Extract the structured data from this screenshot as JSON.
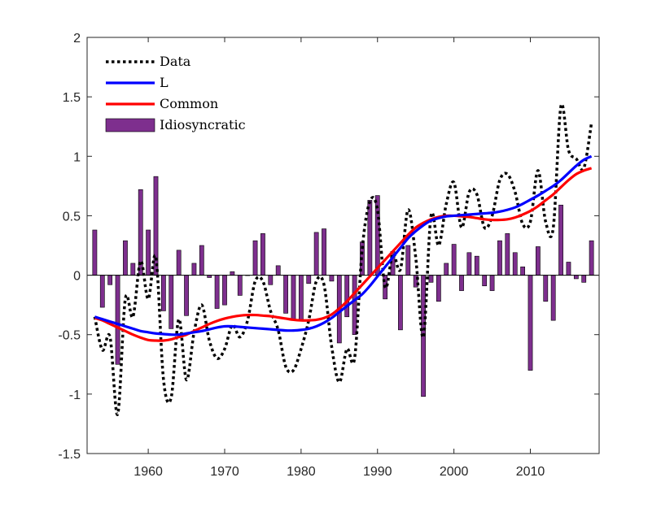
{
  "chart_data": {
    "type": "bar+line",
    "xlim": [
      1952,
      2019
    ],
    "ylim": [
      -1.5,
      2
    ],
    "x_ticks": [
      1960,
      1970,
      1980,
      1990,
      2000,
      2010
    ],
    "y_ticks": [
      -1.5,
      -1,
      -0.5,
      0,
      0.5,
      1,
      1.5,
      2
    ],
    "x_tick_labels": [
      "1960",
      "1970",
      "1980",
      "1990",
      "2000",
      "2010"
    ],
    "y_tick_labels": [
      "-1.5",
      "-1",
      "-0.5",
      "0",
      "0.5",
      "1",
      "1.5",
      "2"
    ],
    "grid": false,
    "legend_placement": "top-left",
    "years": [
      1953,
      1954,
      1955,
      1956,
      1957,
      1958,
      1959,
      1960,
      1961,
      1962,
      1963,
      1964,
      1965,
      1966,
      1967,
      1968,
      1969,
      1970,
      1971,
      1972,
      1973,
      1974,
      1975,
      1976,
      1977,
      1978,
      1979,
      1980,
      1981,
      1982,
      1983,
      1984,
      1985,
      1986,
      1987,
      1988,
      1989,
      1990,
      1991,
      1992,
      1993,
      1994,
      1995,
      1996,
      1997,
      1998,
      1999,
      2000,
      2001,
      2002,
      2003,
      2004,
      2005,
      2006,
      2007,
      2008,
      2009,
      2010,
      2011,
      2012,
      2013,
      2014,
      2015,
      2016,
      2017,
      2018
    ],
    "series": [
      {
        "name": "Data",
        "style": "dotted",
        "color": "#000000",
        "values": [
          -0.35,
          -0.63,
          -0.52,
          -1.17,
          -0.2,
          -0.35,
          0.12,
          -0.2,
          0.15,
          -0.88,
          -1.03,
          -0.37,
          -0.88,
          -0.48,
          -0.25,
          -0.55,
          -0.7,
          -0.62,
          -0.42,
          -0.52,
          -0.38,
          -0.05,
          -0.05,
          -0.3,
          -0.46,
          -0.77,
          -0.8,
          -0.62,
          -0.38,
          -0.05,
          -0.08,
          -0.6,
          -0.9,
          -0.62,
          -0.7,
          0.22,
          0.62,
          0.55,
          -0.1,
          0.18,
          0.05,
          0.55,
          0.15,
          -0.52,
          0.5,
          0.25,
          0.6,
          0.78,
          0.4,
          0.7,
          0.68,
          0.4,
          0.5,
          0.8,
          0.85,
          0.7,
          0.43,
          0.45,
          0.88,
          0.45,
          0.4,
          1.42,
          1.05,
          0.98,
          0.9,
          1.28
        ]
      },
      {
        "name": "L",
        "style": "solid",
        "color": "#0000ff",
        "values": [
          -0.35,
          -0.37,
          -0.39,
          -0.41,
          -0.43,
          -0.45,
          -0.47,
          -0.48,
          -0.49,
          -0.495,
          -0.5,
          -0.5,
          -0.49,
          -0.48,
          -0.47,
          -0.455,
          -0.44,
          -0.43,
          -0.43,
          -0.435,
          -0.44,
          -0.445,
          -0.45,
          -0.455,
          -0.46,
          -0.465,
          -0.465,
          -0.46,
          -0.45,
          -0.43,
          -0.4,
          -0.36,
          -0.31,
          -0.26,
          -0.21,
          -0.16,
          -0.09,
          -0.01,
          0.07,
          0.15,
          0.23,
          0.31,
          0.37,
          0.42,
          0.46,
          0.48,
          0.495,
          0.5,
          0.505,
          0.51,
          0.515,
          0.52,
          0.525,
          0.535,
          0.55,
          0.57,
          0.6,
          0.635,
          0.67,
          0.71,
          0.75,
          0.8,
          0.86,
          0.92,
          0.97,
          1.0
        ]
      },
      {
        "name": "Common",
        "style": "solid",
        "color": "#ff0000",
        "values": [
          -0.36,
          -0.38,
          -0.41,
          -0.44,
          -0.47,
          -0.5,
          -0.525,
          -0.545,
          -0.55,
          -0.55,
          -0.54,
          -0.52,
          -0.5,
          -0.47,
          -0.44,
          -0.41,
          -0.385,
          -0.365,
          -0.35,
          -0.34,
          -0.335,
          -0.335,
          -0.34,
          -0.345,
          -0.355,
          -0.365,
          -0.375,
          -0.38,
          -0.38,
          -0.375,
          -0.36,
          -0.33,
          -0.28,
          -0.22,
          -0.15,
          -0.08,
          -0.01,
          0.06,
          0.13,
          0.2,
          0.27,
          0.34,
          0.4,
          0.44,
          0.47,
          0.49,
          0.5,
          0.5,
          0.495,
          0.49,
          0.48,
          0.47,
          0.465,
          0.465,
          0.47,
          0.485,
          0.51,
          0.54,
          0.58,
          0.63,
          0.68,
          0.74,
          0.8,
          0.85,
          0.88,
          0.9
        ]
      },
      {
        "name": "Idiosyncratic",
        "type": "bar",
        "color": "#7e2f8e",
        "values": [
          0.38,
          -0.27,
          -0.08,
          -0.75,
          0.29,
          0.1,
          0.72,
          0.38,
          0.83,
          -0.3,
          -0.45,
          0.21,
          -0.34,
          0.1,
          0.25,
          -0.02,
          -0.28,
          -0.25,
          0.03,
          -0.17,
          0.0,
          0.29,
          0.35,
          -0.08,
          0.08,
          -0.32,
          -0.37,
          -0.38,
          -0.07,
          0.36,
          0.39,
          -0.05,
          -0.57,
          -0.35,
          -0.5,
          0.28,
          0.63,
          0.67,
          -0.2,
          0.2,
          -0.46,
          0.25,
          -0.1,
          -1.02,
          -0.06,
          -0.22,
          0.1,
          0.26,
          -0.13,
          0.19,
          0.16,
          -0.09,
          -0.13,
          0.29,
          0.35,
          0.19,
          0.07,
          -0.8,
          0.24,
          -0.22,
          -0.38,
          0.59,
          0.11,
          -0.03,
          -0.06,
          0.29
        ]
      }
    ]
  },
  "legend": [
    {
      "label": "Data",
      "kind": "dotted",
      "color": "#000000"
    },
    {
      "label": "L",
      "kind": "line",
      "color": "#0000ff"
    },
    {
      "label": "Common",
      "kind": "line",
      "color": "#ff0000"
    },
    {
      "label": "Idiosyncratic",
      "kind": "bar",
      "color": "#7e2f8e"
    }
  ]
}
